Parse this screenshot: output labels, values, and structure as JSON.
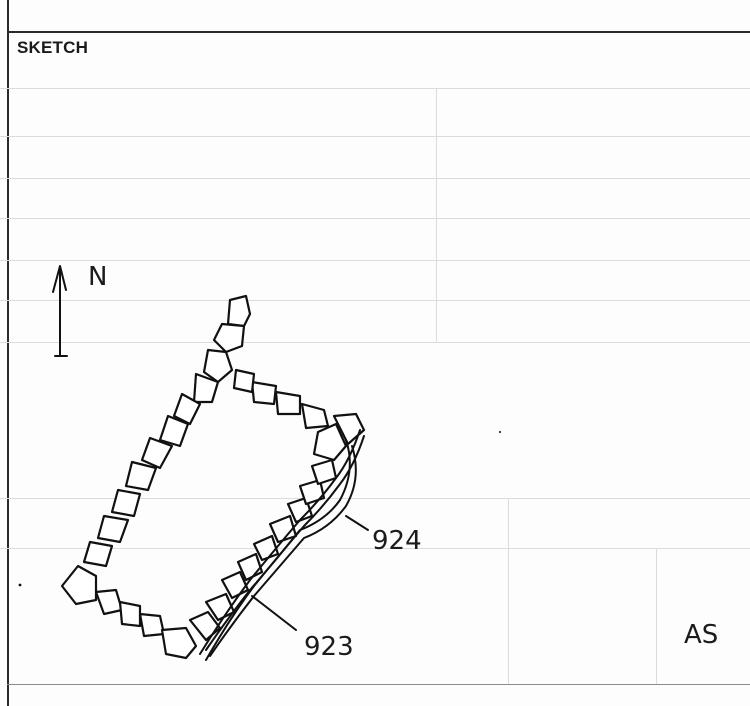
{
  "form": {
    "section_label": "SKETCH"
  },
  "sketch": {
    "north_label": "N",
    "context_labels": [
      {
        "id": "924",
        "text": "924"
      },
      {
        "id": "923",
        "text": "923"
      }
    ],
    "initials": "AS"
  },
  "colors": {
    "ink": "#111111",
    "frame": "#2a2a2a",
    "ghost": "#d0d0d0"
  }
}
